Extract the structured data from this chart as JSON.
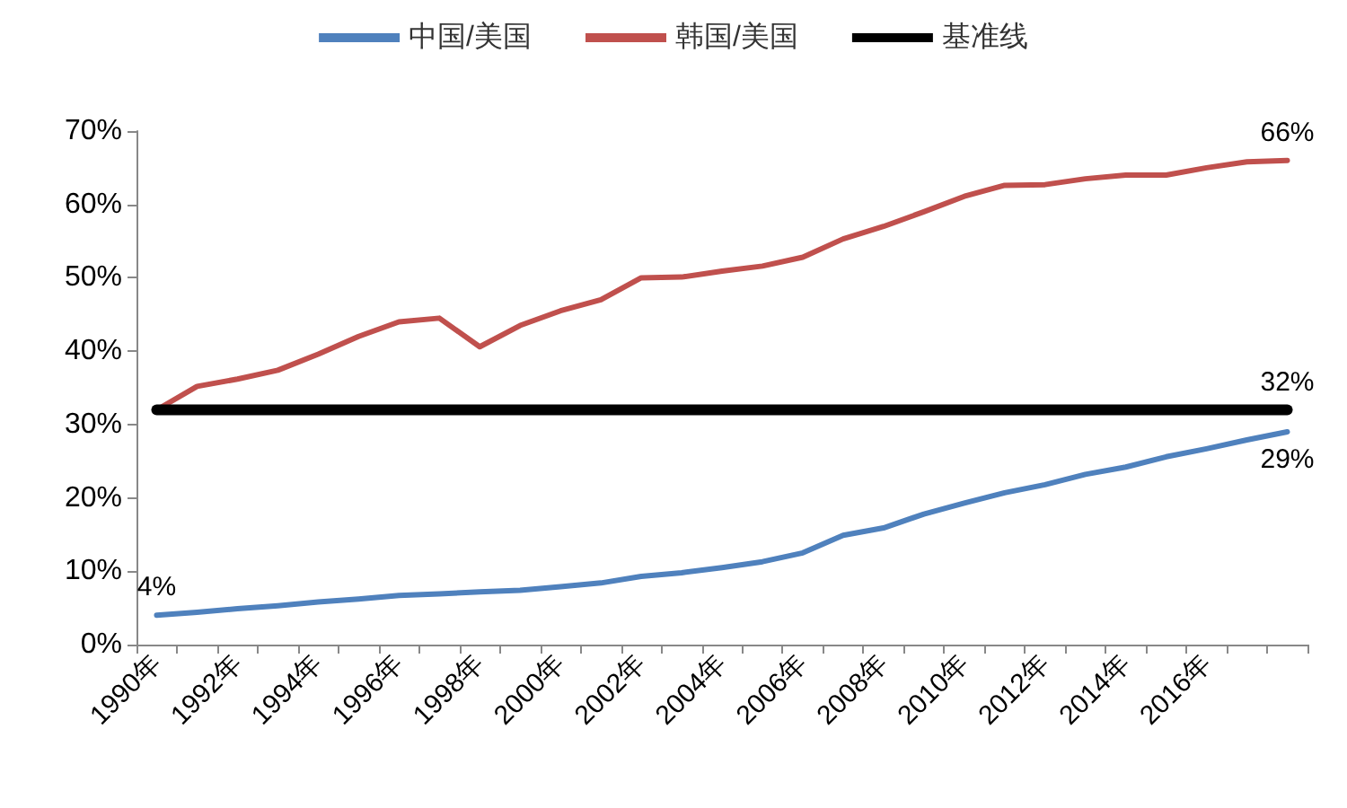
{
  "chart_data": {
    "type": "line",
    "categories": [
      "1990年",
      null,
      "1992年",
      null,
      "1994年",
      null,
      "1996年",
      null,
      "1998年",
      null,
      "2000年",
      null,
      "2002年",
      null,
      "2004年",
      null,
      "2006年",
      null,
      "2008年",
      null,
      "2010年",
      null,
      "2012年",
      null,
      "2014年",
      null,
      "2016年",
      null,
      null
    ],
    "series": [
      {
        "name": "中国/美国",
        "color": "#4f81bd",
        "values": [
          4,
          4.4,
          4.9,
          5.3,
          5.8,
          6.2,
          6.7,
          6.9,
          7.2,
          7.4,
          7.9,
          8.4,
          9.3,
          9.8,
          10.5,
          11.3,
          12.5,
          14.9,
          15.9,
          17.8,
          19.3,
          20.7,
          21.8,
          23.2,
          24.2,
          25.6,
          26.7,
          27.9,
          29
        ],
        "value_labels": [
          "4%",
          null,
          null,
          null,
          null,
          null,
          null,
          null,
          null,
          null,
          null,
          null,
          null,
          null,
          null,
          null,
          null,
          null,
          null,
          null,
          null,
          null,
          null,
          null,
          null,
          null,
          null,
          null,
          "29%"
        ]
      },
      {
        "name": "韩国/美国",
        "color": "#c0504d",
        "values": [
          32,
          35.2,
          36.2,
          37.4,
          39.6,
          42,
          44,
          44.5,
          40.6,
          43.5,
          45.5,
          47,
          50,
          50.1,
          50.9,
          51.6,
          52.8,
          55.3,
          57,
          59,
          61.1,
          62.6,
          62.7,
          63.5,
          64,
          64,
          65,
          65.8,
          66
        ],
        "value_labels": [
          null,
          null,
          null,
          null,
          null,
          null,
          null,
          null,
          null,
          null,
          null,
          null,
          null,
          null,
          null,
          null,
          null,
          null,
          null,
          null,
          null,
          null,
          null,
          null,
          null,
          null,
          null,
          null,
          "66%"
        ]
      },
      {
        "name": "基准线",
        "color": "#000000",
        "values": [
          32,
          32,
          32,
          32,
          32,
          32,
          32,
          32,
          32,
          32,
          32,
          32,
          32,
          32,
          32,
          32,
          32,
          32,
          32,
          32,
          32,
          32,
          32,
          32,
          32,
          32,
          32,
          32,
          32
        ],
        "value_labels": [
          null,
          null,
          null,
          null,
          null,
          null,
          null,
          null,
          null,
          null,
          null,
          null,
          null,
          null,
          null,
          null,
          null,
          null,
          null,
          null,
          null,
          null,
          null,
          null,
          null,
          null,
          null,
          null,
          "32%"
        ]
      }
    ],
    "ylim": [
      0,
      70
    ],
    "yticks": [
      {
        "value": 0,
        "label": "0%"
      },
      {
        "value": 10,
        "label": "10%"
      },
      {
        "value": 20,
        "label": "20%"
      },
      {
        "value": 30,
        "label": "30%"
      },
      {
        "value": 40,
        "label": "40%"
      },
      {
        "value": 50,
        "label": "50%"
      },
      {
        "value": 60,
        "label": "60%"
      },
      {
        "value": 70,
        "label": "70%"
      }
    ],
    "grid": false,
    "legend": "top",
    "marker": "none",
    "line_style": "solid"
  }
}
